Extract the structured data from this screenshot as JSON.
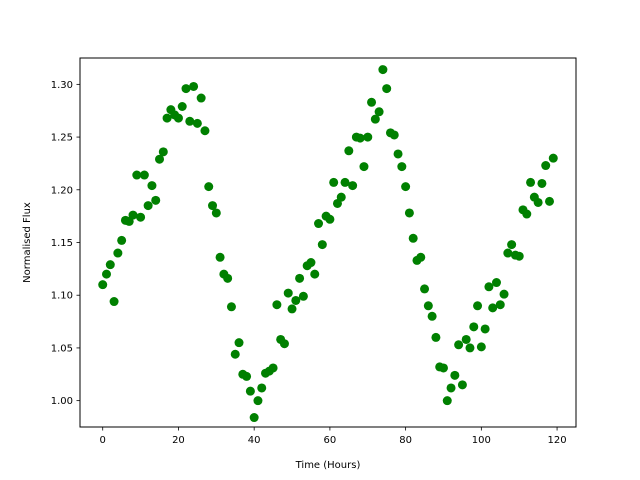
{
  "chart_data": {
    "type": "scatter",
    "title": "",
    "xlabel": "Time (Hours)",
    "ylabel": "Normalised Flux",
    "xlim": [
      -6,
      125
    ],
    "ylim": [
      0.975,
      1.325
    ],
    "xticks": [
      0,
      20,
      40,
      60,
      80,
      100,
      120
    ],
    "yticks": [
      1.0,
      1.05,
      1.1,
      1.15,
      1.2,
      1.25,
      1.3
    ],
    "xtick_labels": [
      "0",
      "20",
      "40",
      "60",
      "80",
      "100",
      "120"
    ],
    "ytick_labels": [
      "1.00",
      "1.05",
      "1.10",
      "1.15",
      "1.20",
      "1.25",
      "1.30"
    ],
    "grid": false,
    "legend": "none",
    "marker_color": "#008000",
    "x": [
      0,
      1,
      2,
      3,
      4,
      5,
      6,
      7,
      8,
      9,
      10,
      11,
      12,
      13,
      14,
      15,
      16,
      17,
      18,
      19,
      20,
      21,
      22,
      23,
      24,
      25,
      26,
      27,
      28,
      29,
      30,
      31,
      32,
      33,
      34,
      35,
      36,
      37,
      38,
      39,
      40,
      41,
      42,
      43,
      44,
      45,
      46,
      47,
      48,
      49,
      50,
      51,
      52,
      53,
      54,
      55,
      56,
      57,
      58,
      59,
      60,
      61,
      62,
      63,
      64,
      65,
      66,
      67,
      68,
      69,
      70,
      71,
      72,
      73,
      74,
      75,
      76,
      77,
      78,
      79,
      80,
      81,
      82,
      83,
      84,
      85,
      86,
      87,
      88,
      89,
      90,
      91,
      92,
      93,
      94,
      95,
      96,
      97,
      98,
      99,
      100,
      101,
      102,
      103,
      104,
      105,
      106,
      107,
      108,
      109,
      110,
      111,
      112,
      113,
      114,
      115,
      116,
      117,
      118,
      119
    ],
    "y": [
      1.11,
      1.12,
      1.129,
      1.094,
      1.14,
      1.152,
      1.171,
      1.17,
      1.176,
      1.214,
      1.174,
      1.214,
      1.185,
      1.204,
      1.19,
      1.229,
      1.236,
      1.268,
      1.276,
      1.271,
      1.268,
      1.279,
      1.296,
      1.265,
      1.298,
      1.263,
      1.287,
      1.256,
      1.203,
      1.185,
      1.178,
      1.136,
      1.12,
      1.116,
      1.089,
      1.044,
      1.055,
      1.025,
      1.023,
      1.009,
      0.984,
      1.0,
      1.012,
      1.026,
      1.028,
      1.031,
      1.091,
      1.058,
      1.054,
      1.102,
      1.087,
      1.095,
      1.116,
      1.099,
      1.128,
      1.131,
      1.12,
      1.168,
      1.148,
      1.175,
      1.172,
      1.207,
      1.187,
      1.193,
      1.207,
      1.237,
      1.204,
      1.25,
      1.249,
      1.222,
      1.25,
      1.283,
      1.267,
      1.274,
      1.314,
      1.296,
      1.254,
      1.252,
      1.234,
      1.222,
      1.203,
      1.178,
      1.154,
      1.133,
      1.136,
      1.106,
      1.09,
      1.08,
      1.06,
      1.032,
      1.031,
      1.0,
      1.012,
      1.024,
      1.053,
      1.015,
      1.058,
      1.05,
      1.07,
      1.09,
      1.051,
      1.068,
      1.108,
      1.088,
      1.112,
      1.091,
      1.101,
      1.14,
      1.148,
      1.138,
      1.137,
      1.181,
      1.177,
      1.207,
      1.193,
      1.188,
      1.206,
      1.223,
      1.189,
      1.23
    ]
  }
}
